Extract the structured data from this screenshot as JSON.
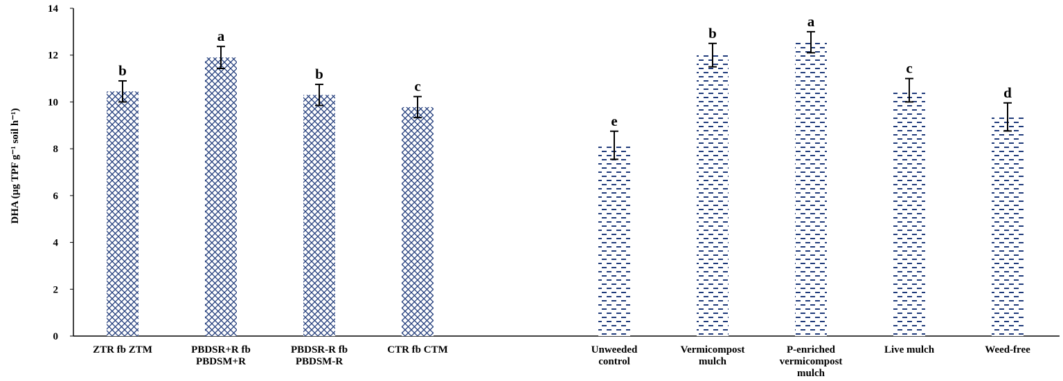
{
  "chart_data": {
    "type": "bar",
    "y_label": "DHA (µg TPF g⁻¹ soil h⁻¹)",
    "categories": [
      "ZTR fb ZTM",
      "PBDSR+R fb\nPBDSM+R",
      "PBDSR-R fb\nPBDSM-R",
      "CTR fb CTM",
      null,
      "Unweeded\ncontrol",
      "Vermicompost\nmulch",
      "P-enriched\nvermicompost\nmulch",
      "Live mulch",
      "Weed-free"
    ],
    "values": [
      10.45,
      11.9,
      10.3,
      9.78,
      null,
      8.15,
      12.0,
      12.55,
      10.5,
      9.36
    ],
    "errors": [
      0.45,
      0.47,
      0.45,
      0.45,
      null,
      0.6,
      0.5,
      0.45,
      0.5,
      0.6
    ],
    "annotations": [
      "b",
      "a",
      "b",
      "c",
      null,
      "e",
      "b",
      "a",
      "c",
      "d"
    ],
    "patterns": [
      "crosshatch",
      "crosshatch",
      "crosshatch",
      "crosshatch",
      null,
      "dash",
      "dash",
      "dash",
      "dash",
      "dash"
    ],
    "color": "#1f3a7a",
    "ylim": [
      0,
      14
    ],
    "yticks": [
      0,
      2,
      4,
      6,
      8,
      10,
      12,
      14
    ],
    "grid": false
  }
}
